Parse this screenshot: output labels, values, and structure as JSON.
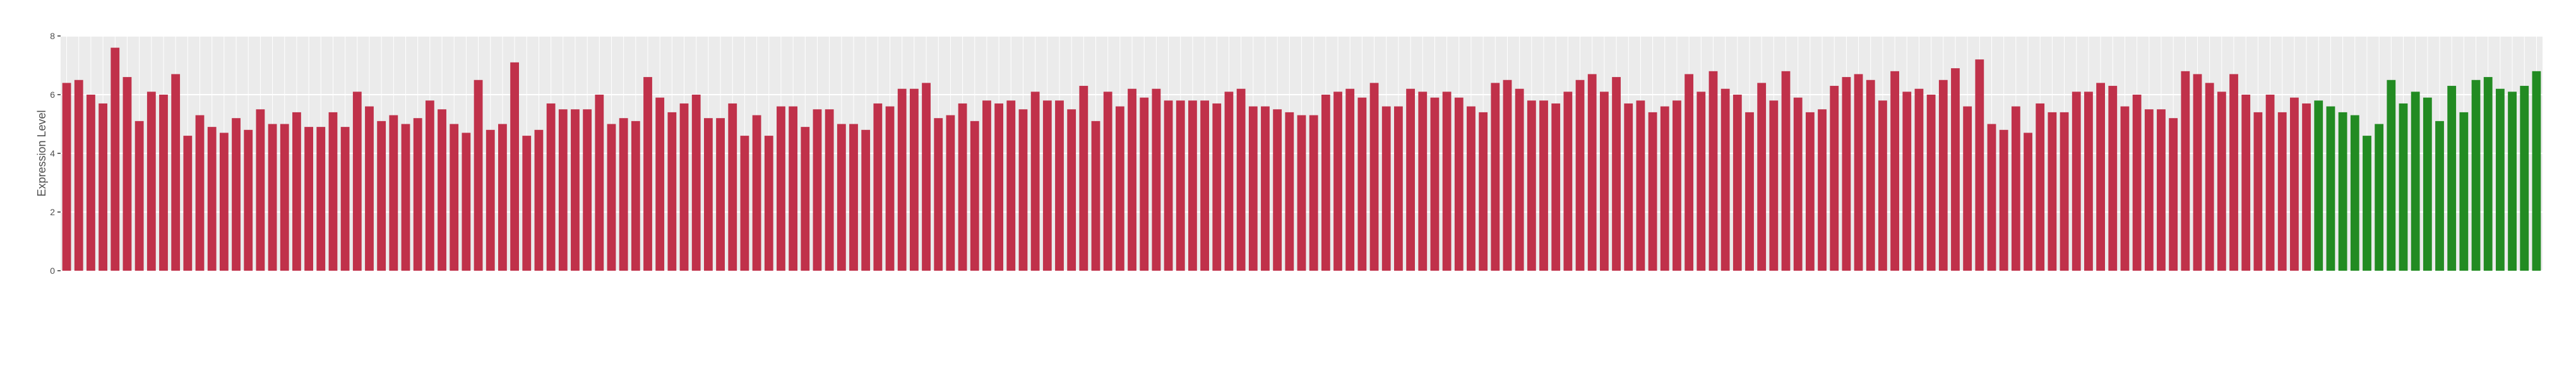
{
  "chart_data": {
    "type": "bar",
    "y_label": "Expression Level",
    "categories": [
      null,
      null,
      null,
      null,
      null,
      null,
      null,
      null,
      null,
      null,
      null,
      null,
      null,
      null,
      null,
      null,
      null,
      null,
      null,
      null,
      null,
      null,
      null,
      null,
      null,
      null,
      null,
      null,
      null,
      null,
      null,
      null,
      null,
      null,
      null,
      null,
      null,
      null,
      null,
      null,
      null,
      null,
      null,
      null,
      null,
      null,
      null,
      null,
      null,
      null,
      null,
      null,
      null,
      null,
      null,
      null,
      null,
      null,
      null,
      null,
      null,
      null,
      null,
      null,
      null,
      null,
      null,
      null,
      null,
      null,
      null,
      null,
      null,
      null,
      null,
      null,
      null,
      null,
      null,
      null,
      null,
      null,
      null,
      null,
      null,
      null,
      null,
      null,
      null,
      null,
      null,
      null,
      null,
      null,
      null,
      null,
      null,
      null,
      null,
      null,
      null,
      null,
      null,
      null,
      null,
      null,
      null,
      null,
      null,
      null,
      null,
      null,
      null,
      null,
      null,
      null,
      null,
      null,
      null,
      null,
      null,
      null,
      null,
      null,
      null,
      null,
      null,
      null,
      null,
      null,
      null,
      null,
      null,
      null,
      null,
      null,
      null,
      null,
      null,
      null,
      null,
      null,
      null,
      null,
      null,
      null,
      null,
      null,
      null,
      null,
      null,
      null,
      null,
      null,
      null,
      null,
      null,
      null,
      null,
      null,
      null,
      null,
      null,
      null,
      null,
      null,
      null,
      null,
      null,
      null,
      null,
      null,
      null,
      null,
      null,
      null,
      null,
      null,
      null,
      null,
      null,
      null,
      null,
      null,
      null,
      null,
      null,
      null,
      null,
      null,
      null,
      null,
      null,
      null,
      null,
      null,
      null,
      null,
      null,
      null,
      null,
      null,
      null,
      null,
      null
    ],
    "values": [
      6.4,
      6.5,
      6.0,
      5.7,
      7.6,
      6.6,
      5.1,
      6.1,
      6.0,
      6.7,
      4.6,
      5.3,
      4.9,
      4.7,
      5.2,
      4.8,
      5.5,
      5.0,
      5.0,
      5.4,
      4.9,
      4.9,
      5.4,
      4.9,
      6.1,
      5.6,
      5.1,
      5.3,
      5.0,
      5.2,
      5.8,
      5.5,
      5.0,
      4.7,
      6.5,
      4.8,
      5.0,
      7.1,
      4.6,
      4.8,
      5.7,
      5.5,
      5.5,
      5.5,
      6.0,
      5.0,
      5.2,
      5.1,
      6.6,
      5.9,
      5.4,
      5.7,
      6.0,
      5.2,
      5.2,
      5.7,
      4.6,
      5.3,
      4.6,
      5.6,
      5.6,
      4.9,
      5.5,
      5.5,
      5.0,
      5.0,
      4.8,
      5.7,
      5.6,
      6.2,
      6.2,
      6.4,
      5.2,
      5.3,
      5.7,
      5.1,
      5.8,
      5.7,
      5.8,
      5.5,
      6.1,
      5.8,
      5.8,
      5.5,
      6.3,
      5.1,
      6.1,
      5.6,
      6.2,
      5.9,
      6.2,
      5.8,
      5.8,
      5.8,
      5.8,
      5.7,
      6.1,
      6.2,
      5.6,
      5.6,
      5.5,
      5.4,
      5.3,
      5.3,
      6.0,
      6.1,
      6.2,
      5.9,
      6.4,
      5.6,
      5.6,
      6.2,
      6.1,
      5.9,
      6.1,
      5.9,
      5.6,
      5.4,
      6.4,
      6.5,
      6.2,
      5.8,
      5.8,
      5.7,
      6.1,
      6.5,
      6.7,
      6.1,
      6.6,
      5.7,
      5.8,
      5.4,
      5.6,
      5.8,
      6.7,
      6.1,
      6.8,
      6.2,
      6.0,
      5.4,
      6.4,
      5.8,
      6.8,
      5.9,
      5.4,
      5.5,
      6.3,
      6.6,
      6.7,
      6.5,
      5.8,
      6.8,
      6.1,
      6.2,
      6.0,
      6.5,
      6.9,
      5.6,
      7.2,
      5.0,
      4.8,
      5.6,
      4.7,
      5.7,
      5.4,
      5.4,
      6.1,
      6.1,
      6.4,
      6.3,
      5.6,
      6.0,
      5.5,
      5.5,
      5.2,
      6.8,
      6.7,
      6.4,
      6.1,
      6.7,
      6.0,
      5.4,
      6.0,
      5.4,
      5.9,
      5.7,
      5.8,
      5.6,
      5.4,
      5.3,
      4.6,
      5.0,
      6.5,
      5.7,
      6.1,
      5.9,
      5.1,
      6.3,
      5.4,
      6.5,
      6.6,
      6.2,
      6.1,
      6.3,
      6.8
    ],
    "colors": [
      "#c0314a",
      "#c0314a",
      "#c0314a",
      "#c0314a",
      "#c0314a",
      "#c0314a",
      "#c0314a",
      "#c0314a",
      "#c0314a",
      "#c0314a",
      "#c0314a",
      "#c0314a",
      "#c0314a",
      "#c0314a",
      "#c0314a",
      "#c0314a",
      "#c0314a",
      "#c0314a",
      "#c0314a",
      "#c0314a",
      "#c0314a",
      "#c0314a",
      "#c0314a",
      "#c0314a",
      "#c0314a",
      "#c0314a",
      "#c0314a",
      "#c0314a",
      "#c0314a",
      "#c0314a",
      "#c0314a",
      "#c0314a",
      "#c0314a",
      "#c0314a",
      "#c0314a",
      "#c0314a",
      "#c0314a",
      "#c0314a",
      "#c0314a",
      "#c0314a",
      "#c0314a",
      "#c0314a",
      "#c0314a",
      "#c0314a",
      "#c0314a",
      "#c0314a",
      "#c0314a",
      "#c0314a",
      "#c0314a",
      "#c0314a",
      "#c0314a",
      "#c0314a",
      "#c0314a",
      "#c0314a",
      "#c0314a",
      "#c0314a",
      "#c0314a",
      "#c0314a",
      "#c0314a",
      "#c0314a",
      "#c0314a",
      "#c0314a",
      "#c0314a",
      "#c0314a",
      "#c0314a",
      "#c0314a",
      "#c0314a",
      "#c0314a",
      "#c0314a",
      "#c0314a",
      "#c0314a",
      "#c0314a",
      "#c0314a",
      "#c0314a",
      "#c0314a",
      "#c0314a",
      "#c0314a",
      "#c0314a",
      "#c0314a",
      "#c0314a",
      "#c0314a",
      "#c0314a",
      "#c0314a",
      "#c0314a",
      "#c0314a",
      "#c0314a",
      "#c0314a",
      "#c0314a",
      "#c0314a",
      "#c0314a",
      "#c0314a",
      "#c0314a",
      "#c0314a",
      "#c0314a",
      "#c0314a",
      "#c0314a",
      "#c0314a",
      "#c0314a",
      "#c0314a",
      "#c0314a",
      "#c0314a",
      "#c0314a",
      "#c0314a",
      "#c0314a",
      "#c0314a",
      "#c0314a",
      "#c0314a",
      "#c0314a",
      "#c0314a",
      "#c0314a",
      "#c0314a",
      "#c0314a",
      "#c0314a",
      "#c0314a",
      "#c0314a",
      "#c0314a",
      "#c0314a",
      "#c0314a",
      "#c0314a",
      "#c0314a",
      "#c0314a",
      "#c0314a",
      "#c0314a",
      "#c0314a",
      "#c0314a",
      "#c0314a",
      "#c0314a",
      "#c0314a",
      "#c0314a",
      "#c0314a",
      "#c0314a",
      "#c0314a",
      "#c0314a",
      "#c0314a",
      "#c0314a",
      "#c0314a",
      "#c0314a",
      "#c0314a",
      "#c0314a",
      "#c0314a",
      "#c0314a",
      "#c0314a",
      "#c0314a",
      "#c0314a",
      "#c0314a",
      "#c0314a",
      "#c0314a",
      "#c0314a",
      "#c0314a",
      "#c0314a",
      "#c0314a",
      "#c0314a",
      "#c0314a",
      "#c0314a",
      "#c0314a",
      "#c0314a",
      "#c0314a",
      "#c0314a",
      "#c0314a",
      "#c0314a",
      "#c0314a",
      "#c0314a",
      "#c0314a",
      "#c0314a",
      "#c0314a",
      "#c0314a",
      "#c0314a",
      "#c0314a",
      "#c0314a",
      "#c0314a",
      "#c0314a",
      "#c0314a",
      "#c0314a",
      "#c0314a",
      "#c0314a",
      "#c0314a",
      "#c0314a",
      "#c0314a",
      "#c0314a",
      "#c0314a",
      "#c0314a",
      "#c0314a",
      "#c0314a",
      "#c0314a",
      "#c0314a",
      "#c0314a",
      "#228b22",
      "#228b22",
      "#228b22",
      "#228b22",
      "#228b22",
      "#228b22",
      "#228b22",
      "#228b22",
      "#228b22",
      "#228b22",
      "#228b22",
      "#228b22",
      "#228b22",
      "#228b22",
      "#228b22",
      "#228b22",
      "#228b22",
      "#228b22",
      "#228b22",
      "#228b22",
      "#228b22"
    ],
    "ylim": [
      0,
      8
    ],
    "yticks": [
      0,
      2,
      4,
      6,
      8
    ],
    "grid": true,
    "panel_color": "#ebebeb"
  }
}
